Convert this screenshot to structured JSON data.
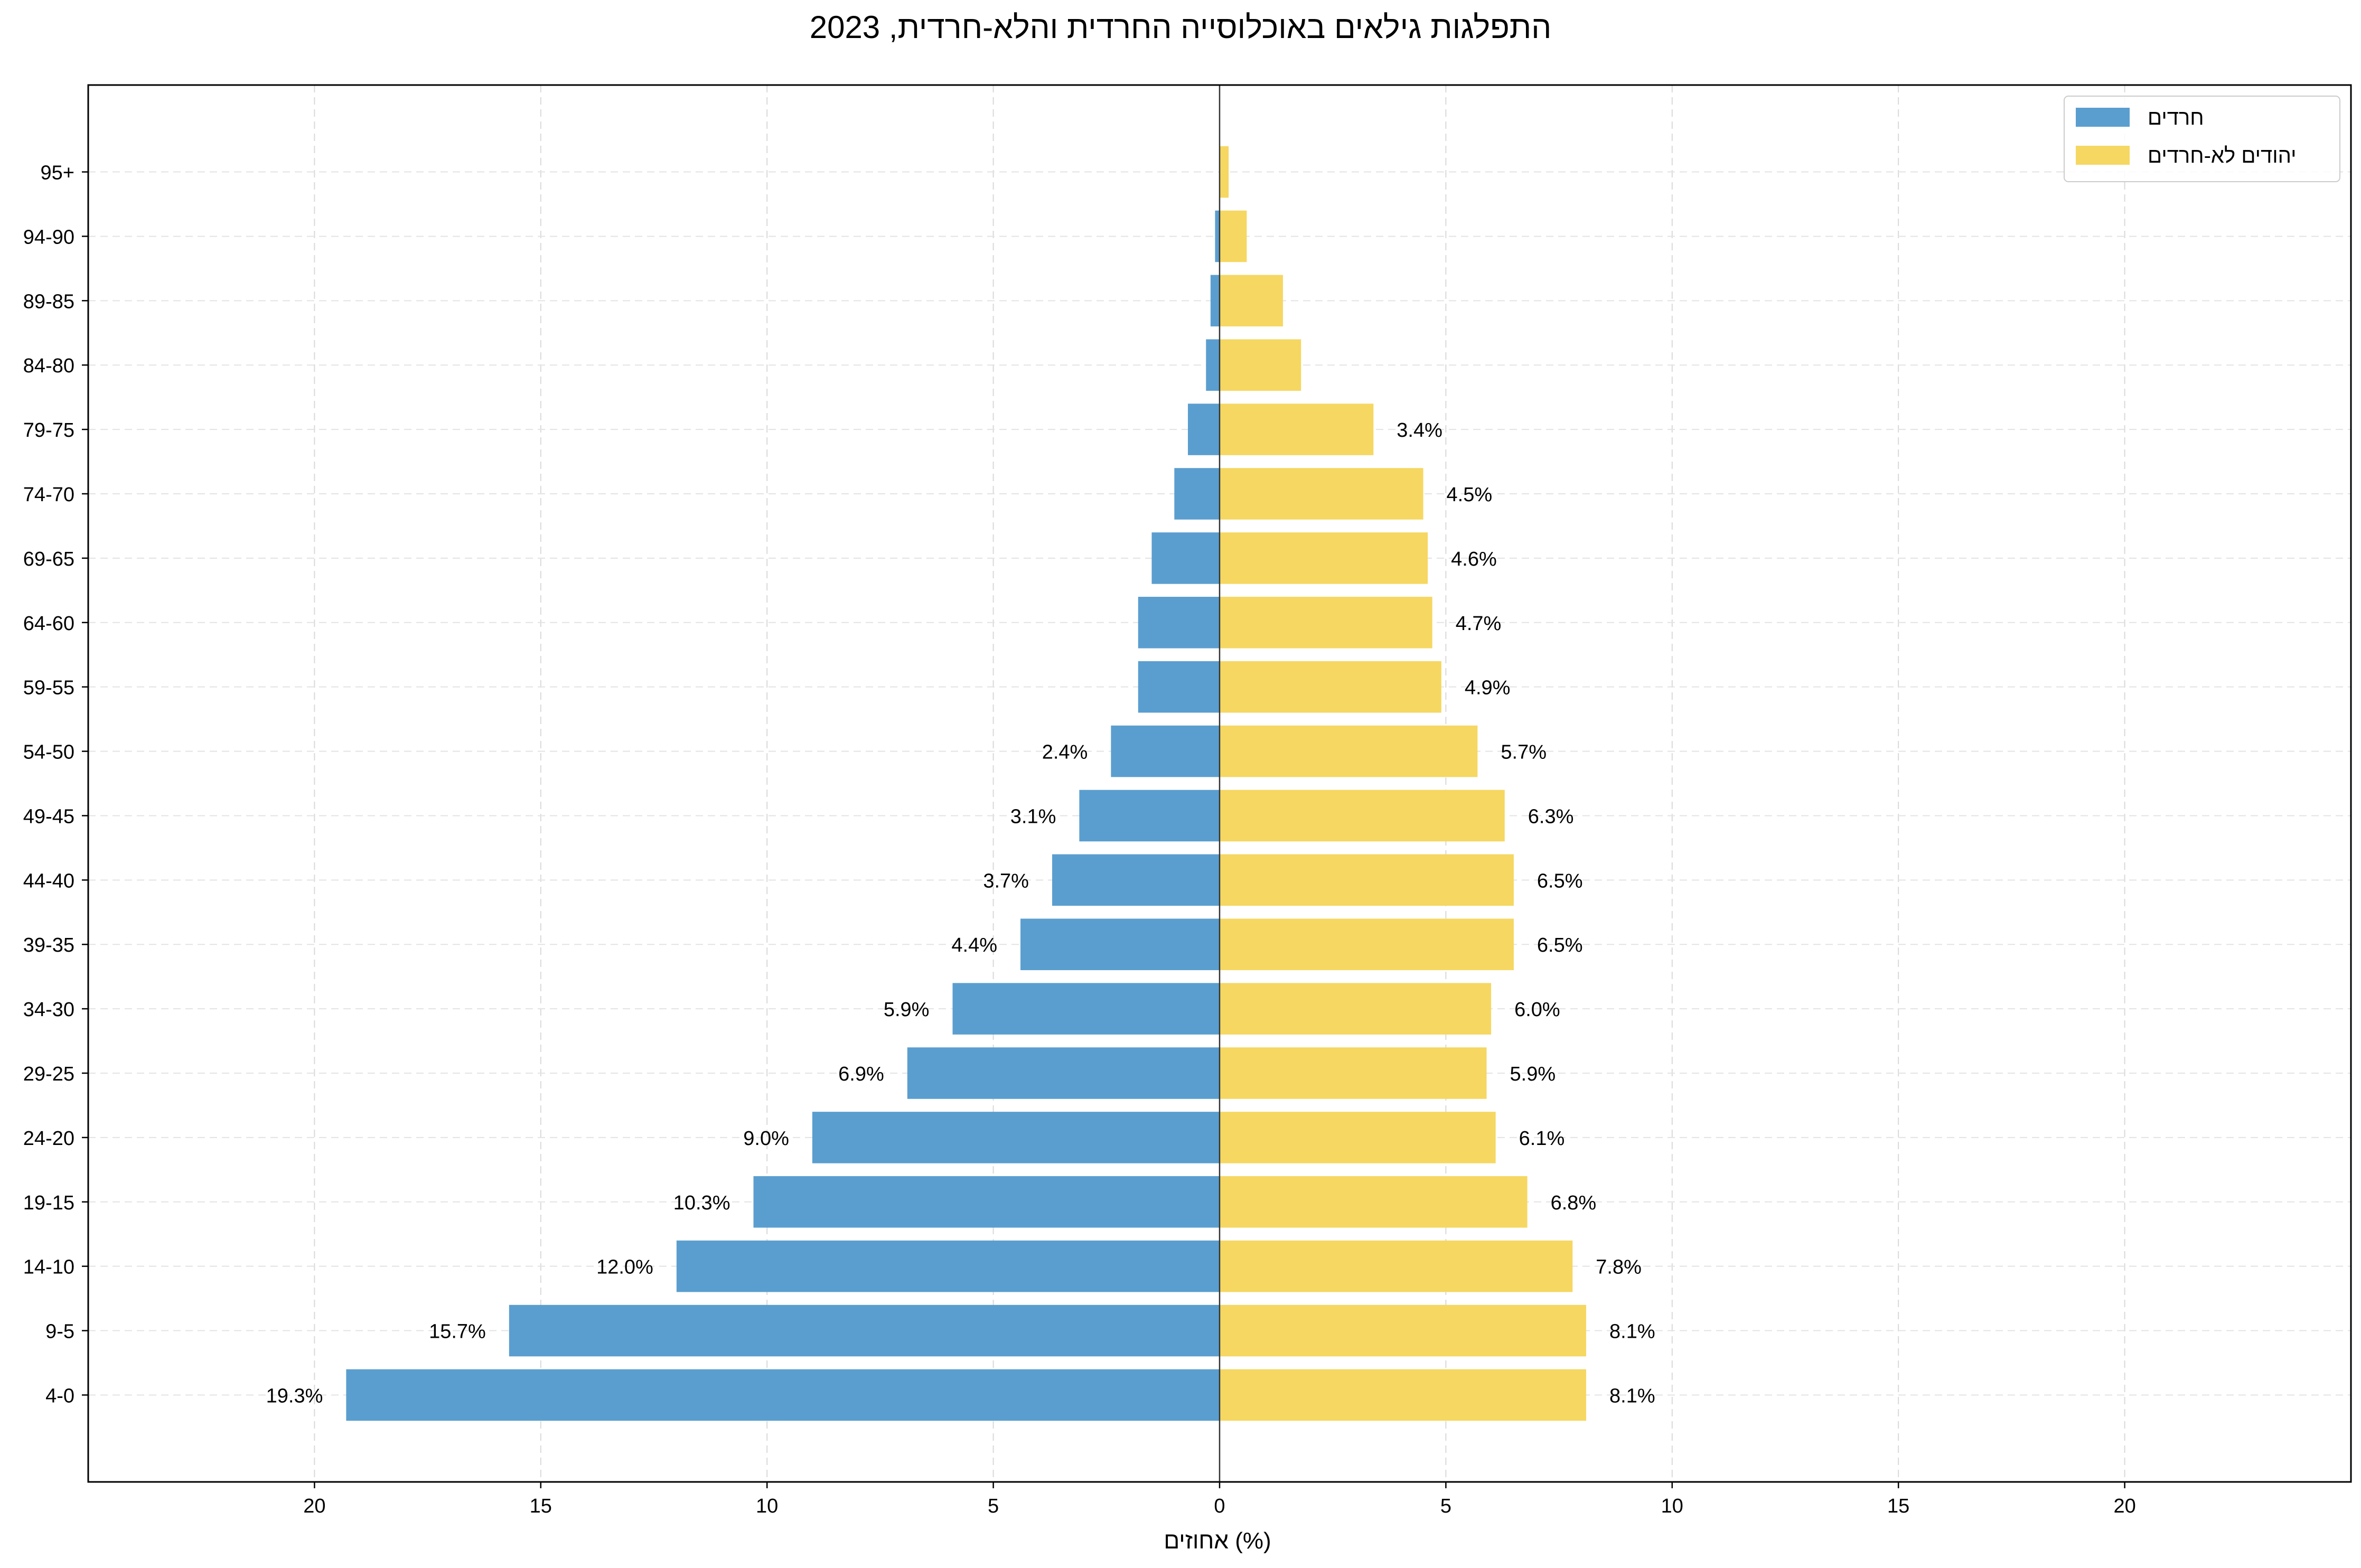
{
  "chart_data": {
    "type": "bar",
    "orientation": "horizontal-diverging",
    "title": "התפלגות גילאים באוכלוסייה החרדית והלא-חרדית, 2023",
    "xlabel": "אחוזים (%)",
    "ylabel": "",
    "xlim": [
      -25,
      25
    ],
    "xticks": [
      -20,
      -15,
      -10,
      -5,
      0,
      5,
      10,
      15,
      20
    ],
    "xtick_labels": [
      "20",
      "15",
      "10",
      "5",
      "0",
      "5",
      "10",
      "15",
      "20"
    ],
    "grid": true,
    "legend_position": "top-right",
    "categories": [
      "4-0",
      "9-5",
      "14-10",
      "19-15",
      "24-20",
      "29-25",
      "34-30",
      "39-35",
      "44-40",
      "49-45",
      "54-50",
      "59-55",
      "64-60",
      "69-65",
      "74-70",
      "79-75",
      "84-80",
      "89-85",
      "94-90",
      "95+"
    ],
    "series": [
      {
        "name": "חרדים",
        "color": "#5a9ecf",
        "side": "left",
        "values": [
          19.3,
          15.7,
          12.0,
          10.3,
          9.0,
          6.9,
          5.9,
          4.4,
          3.7,
          3.1,
          2.4,
          1.8,
          1.8,
          1.5,
          1.0,
          0.7,
          0.3,
          0.2,
          0.1,
          0.0
        ],
        "labels": [
          "19.3%",
          "15.7%",
          "12.0%",
          "10.3%",
          "9.0%",
          "6.9%",
          "5.9%",
          "4.4%",
          "3.7%",
          "3.1%",
          "2.4%",
          "",
          "",
          "",
          "",
          "",
          "",
          "",
          "",
          ""
        ]
      },
      {
        "name": "יהודים לא-חרדים",
        "color": "#f5d762",
        "side": "right",
        "values": [
          8.1,
          8.1,
          7.8,
          6.8,
          6.1,
          5.9,
          6.0,
          6.5,
          6.5,
          6.3,
          5.7,
          4.9,
          4.7,
          4.6,
          4.5,
          3.4,
          1.8,
          1.4,
          0.6,
          0.2
        ],
        "labels": [
          "8.1%",
          "8.1%",
          "7.8%",
          "6.8%",
          "6.1%",
          "5.9%",
          "6.0%",
          "6.5%",
          "6.5%",
          "6.3%",
          "5.7%",
          "4.9%",
          "4.7%",
          "4.6%",
          "4.5%",
          "3.4%",
          "",
          "",
          "",
          ""
        ]
      }
    ]
  }
}
